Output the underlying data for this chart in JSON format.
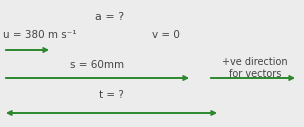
{
  "bg_color": "#ececec",
  "green": "#2d882d",
  "title_text": "a = ?",
  "u_label": "u = 380 m s⁻¹",
  "v_label": "v = 0",
  "s_label": "s = 60mm",
  "t_label": "t = ?",
  "pve_line1": "+ve direction",
  "pve_line2": "for vectors",
  "figsize": [
    3.04,
    1.27
  ],
  "dpi": 100,
  "text_color": "#444444"
}
